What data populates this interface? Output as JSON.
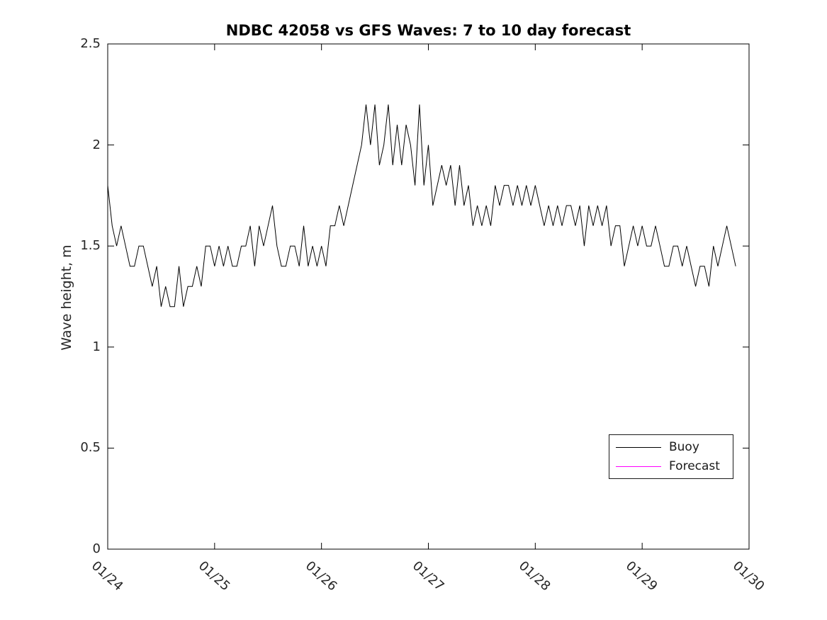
{
  "chart_data": {
    "type": "line",
    "title": "NDBC 42058 vs GFS Waves: 7 to 10 day forecast",
    "xlabel": "",
    "ylabel": "Wave height, m",
    "ylim": [
      0,
      2.5
    ],
    "y_ticks": [
      "0",
      "0.5",
      "1",
      "1.5",
      "2",
      "2.5"
    ],
    "y_tick_values": [
      0,
      0.5,
      1,
      1.5,
      2,
      2.5
    ],
    "x_ticks": [
      "01/24",
      "01/25",
      "01/26",
      "01/27",
      "01/28",
      "01/29",
      "01/30"
    ],
    "x_axis_span_hours": 144,
    "grid": false,
    "axis_color": "#000000",
    "legend": {
      "position": "right-middle",
      "entries": [
        {
          "label": "Buoy",
          "color": "#000000"
        },
        {
          "label": "Forecast",
          "color": "#ff00ff"
        }
      ]
    },
    "series": [
      {
        "name": "Buoy",
        "color": "#000000",
        "start_hour": 0,
        "step_hours": 1,
        "values": [
          1.8,
          1.6,
          1.5,
          1.6,
          1.5,
          1.4,
          1.4,
          1.5,
          1.5,
          1.4,
          1.3,
          1.4,
          1.2,
          1.3,
          1.2,
          1.2,
          1.4,
          1.2,
          1.3,
          1.3,
          1.4,
          1.3,
          1.5,
          1.5,
          1.4,
          1.5,
          1.4,
          1.5,
          1.4,
          1.4,
          1.5,
          1.5,
          1.6,
          1.4,
          1.6,
          1.5,
          1.6,
          1.7,
          1.5,
          1.4,
          1.4,
          1.5,
          1.5,
          1.4,
          1.6,
          1.4,
          1.5,
          1.4,
          1.5,
          1.4,
          1.6,
          1.6,
          1.7,
          1.6,
          1.7,
          1.8,
          1.9,
          2.0,
          2.2,
          2.0,
          2.2,
          1.9,
          2.0,
          2.2,
          1.9,
          2.1,
          1.9,
          2.1,
          2.0,
          1.8,
          2.2,
          1.8,
          2.0,
          1.7,
          1.8,
          1.9,
          1.8,
          1.9,
          1.7,
          1.9,
          1.7,
          1.8,
          1.6,
          1.7,
          1.6,
          1.7,
          1.6,
          1.8,
          1.7,
          1.8,
          1.8,
          1.7,
          1.8,
          1.7,
          1.8,
          1.7,
          1.8,
          1.7,
          1.6,
          1.7,
          1.6,
          1.7,
          1.6,
          1.7,
          1.7,
          1.6,
          1.7,
          1.5,
          1.7,
          1.6,
          1.7,
          1.6,
          1.7,
          1.5,
          1.6,
          1.6,
          1.4,
          1.5,
          1.6,
          1.5,
          1.6,
          1.5,
          1.5,
          1.6,
          1.5,
          1.4,
          1.4,
          1.5,
          1.5,
          1.4,
          1.5,
          1.4,
          1.3,
          1.4,
          1.4,
          1.3,
          1.5,
          1.4,
          1.5,
          1.6,
          1.5,
          1.4
        ]
      },
      {
        "name": "Forecast",
        "color": "#ff00ff",
        "start_hour": 0,
        "step_hours": 1,
        "values": []
      }
    ]
  }
}
